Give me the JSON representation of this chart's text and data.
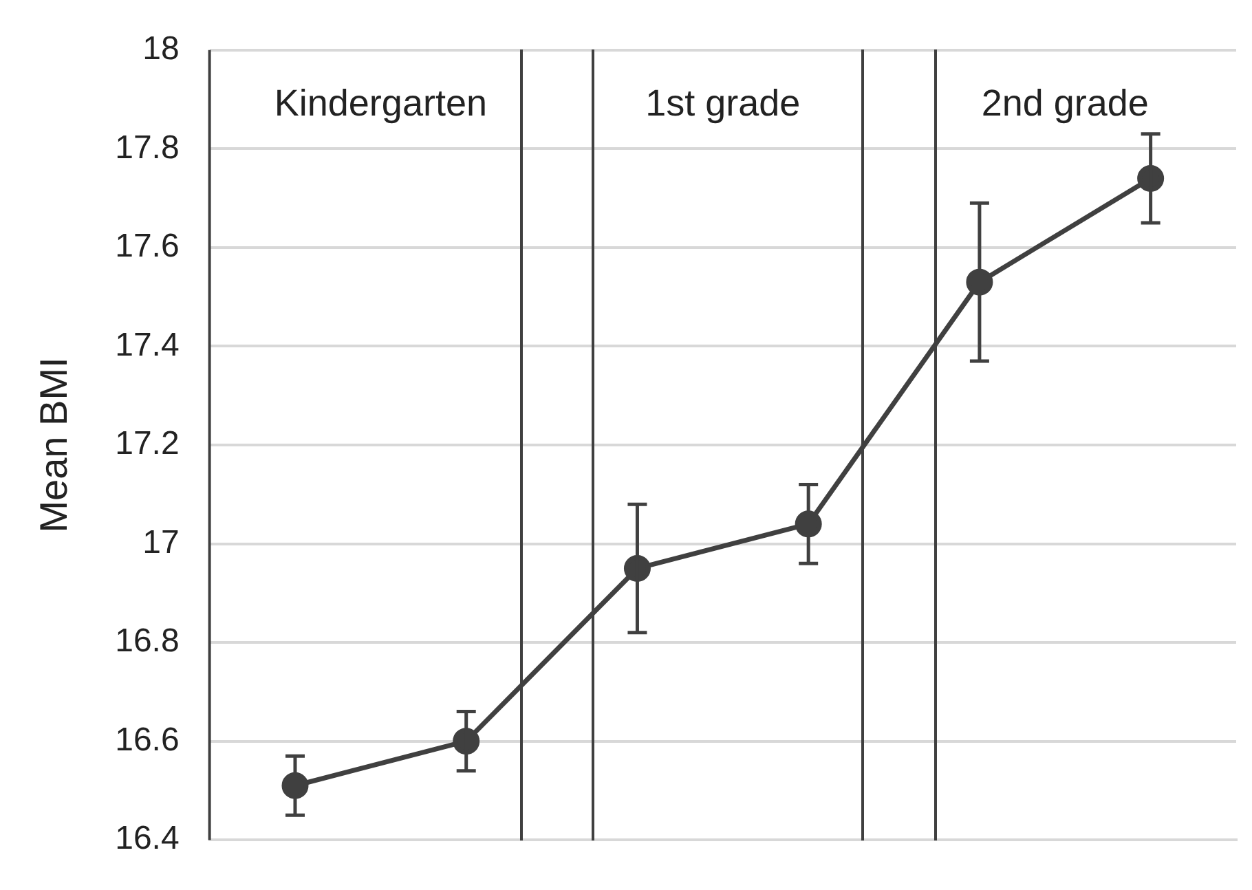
{
  "chart_data": {
    "type": "line",
    "ylabel": "Mean BMI",
    "categories": [
      null,
      null,
      null,
      null,
      null,
      null
    ],
    "series": [
      {
        "color": "#404040",
        "values": [
          16.51,
          16.6,
          16.95,
          17.04,
          17.53,
          17.74
        ],
        "errors": [
          0.06,
          0.06,
          0.13,
          0.08,
          0.16,
          0.09
        ]
      }
    ],
    "ylim": [
      16.4,
      18
    ],
    "yticks": [
      16.4,
      16.6,
      16.8,
      17,
      17.2,
      17.4,
      17.6,
      17.8,
      18
    ],
    "tick_labels": "y",
    "grid": "y",
    "marker": "circle",
    "line_style": "solid",
    "legend": false,
    "annotations": [
      "Kindergarten",
      "1st grade",
      "2nd grade"
    ]
  }
}
